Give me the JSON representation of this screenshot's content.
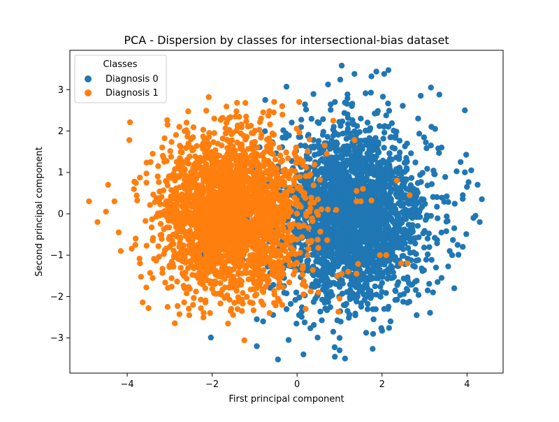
{
  "chart_data": {
    "type": "scatter",
    "title": "PCA - Dispersion by classes for intersectional-bias dataset",
    "xlabel": "First principal component",
    "ylabel": "Second principal component",
    "xlim": [
      -5.35,
      4.85
    ],
    "ylim": [
      -3.85,
      3.95
    ],
    "xticks": [
      -4,
      -2,
      0,
      2,
      4
    ],
    "yticks": [
      -3,
      -2,
      -1,
      0,
      1,
      2,
      3
    ],
    "xtick_labels": [
      "−4",
      "−2",
      "0",
      "2",
      "4"
    ],
    "ytick_labels": [
      "−3",
      "−2",
      "−1",
      "0",
      "1",
      "2",
      "3"
    ],
    "grid": false,
    "legend": {
      "title": "Classes",
      "placement": "top-left"
    },
    "series": [
      {
        "name": "Diagnosis 0",
        "color": "#1f77b4",
        "center": [
          1.3,
          -0.05
        ],
        "spread": [
          0.85,
          1.05
        ],
        "n_points": 2600,
        "points": [
          [
            1.05,
            3.58
          ],
          [
            2.15,
            3.47
          ],
          [
            2.05,
            3.38
          ],
          [
            1.35,
            3.38
          ],
          [
            1.75,
            3.32
          ],
          [
            -0.25,
            3.07
          ],
          [
            3.15,
            3.05
          ],
          [
            3.35,
            2.88
          ],
          [
            -0.75,
            2.75
          ],
          [
            3.95,
            2.5
          ],
          [
            2.85,
            2.3
          ],
          [
            3.25,
            2.05
          ],
          [
            3.15,
            1.65
          ],
          [
            3.4,
            1.6
          ],
          [
            3.85,
            1.25
          ],
          [
            4.1,
            1.05
          ],
          [
            3.95,
            1.0
          ],
          [
            4.25,
            0.7
          ],
          [
            4.0,
            0.65
          ],
          [
            3.9,
            0.45
          ],
          [
            4.35,
            0.35
          ],
          [
            4.2,
            -0.05
          ],
          [
            4.3,
            -0.2
          ],
          [
            4.15,
            -0.1
          ],
          [
            3.7,
            -0.35
          ],
          [
            3.9,
            -0.8
          ],
          [
            3.65,
            -1.0
          ],
          [
            3.4,
            -1.55
          ],
          [
            3.7,
            -1.8
          ],
          [
            3.2,
            -1.9
          ],
          [
            2.6,
            -2.15
          ],
          [
            2.05,
            -2.3
          ],
          [
            2.2,
            -2.6
          ],
          [
            1.8,
            -2.55
          ],
          [
            1.0,
            -3.0
          ],
          [
            1.0,
            -3.3
          ],
          [
            0.85,
            -2.85
          ],
          [
            -0.95,
            -3.2
          ],
          [
            -0.45,
            -3.52
          ],
          [
            0.15,
            -3.4
          ],
          [
            -0.2,
            -3.05
          ],
          [
            -0.95,
            -2.55
          ],
          [
            -0.8,
            -2.6
          ]
        ]
      },
      {
        "name": "Diagnosis 1",
        "color": "#ff7f0e",
        "center": [
          -1.55,
          0.0
        ],
        "spread": [
          0.8,
          0.9
        ],
        "n_points": 2600,
        "points": [
          [
            -4.9,
            0.3
          ],
          [
            -4.7,
            -0.2
          ],
          [
            -4.5,
            0.05
          ],
          [
            -4.45,
            0.7
          ],
          [
            -4.3,
            0.3
          ],
          [
            -4.2,
            -0.45
          ],
          [
            -4.15,
            -0.9
          ],
          [
            -3.95,
            1.78
          ],
          [
            -3.8,
            -0.6
          ],
          [
            -3.7,
            -1.2
          ],
          [
            -3.5,
            -2.28
          ],
          [
            -3.55,
            -1.78
          ],
          [
            -3.4,
            1.45
          ],
          [
            -3.45,
            1.25
          ],
          [
            -3.05,
            -2.25
          ],
          [
            -3.05,
            2.15
          ],
          [
            -2.65,
            2.0
          ],
          [
            -2.5,
            1.8
          ],
          [
            -2.65,
            -1.8
          ],
          [
            -2.45,
            -2.2
          ],
          [
            -2.2,
            -2.4
          ],
          [
            -2.05,
            -2.4
          ],
          [
            -2.45,
            1.85
          ],
          [
            -1.95,
            1.95
          ],
          [
            -1.75,
            1.82
          ],
          [
            -1.45,
            2.35
          ],
          [
            -1.95,
            2.3
          ],
          [
            -1.55,
            -2.3
          ],
          [
            -1.3,
            -2.35
          ],
          [
            -1.2,
            2.35
          ],
          [
            -0.8,
            2.45
          ],
          [
            -0.85,
            2.3
          ],
          [
            -0.35,
            2.6
          ],
          [
            -0.55,
            2.45
          ],
          [
            0.05,
            2.7
          ],
          [
            0.85,
            2.25
          ],
          [
            0.65,
            1.65
          ],
          [
            0.7,
            1.45
          ],
          [
            1.35,
            1.78
          ],
          [
            1.4,
            0.55
          ],
          [
            1.55,
            0.6
          ],
          [
            1.5,
            0.3
          ],
          [
            1.4,
            0.3
          ],
          [
            1.75,
            0.32
          ],
          [
            2.35,
            0.8
          ],
          [
            2.65,
            0.45
          ],
          [
            1.95,
            -1.0
          ],
          [
            2.1,
            -1.0
          ],
          [
            2.6,
            -1.2
          ],
          [
            2.45,
            -1.2
          ],
          [
            1.05,
            -1.45
          ],
          [
            1.2,
            -1.4
          ],
          [
            1.4,
            -1.45
          ],
          [
            0.95,
            -1.5
          ],
          [
            0.5,
            -1.9
          ],
          [
            0.2,
            -1.75
          ],
          [
            -0.45,
            -2.05
          ],
          [
            -0.35,
            -2.2
          ],
          [
            -0.65,
            -2.4
          ],
          [
            0.2,
            -2.3
          ],
          [
            1.0,
            -2.05
          ]
        ]
      }
    ]
  }
}
